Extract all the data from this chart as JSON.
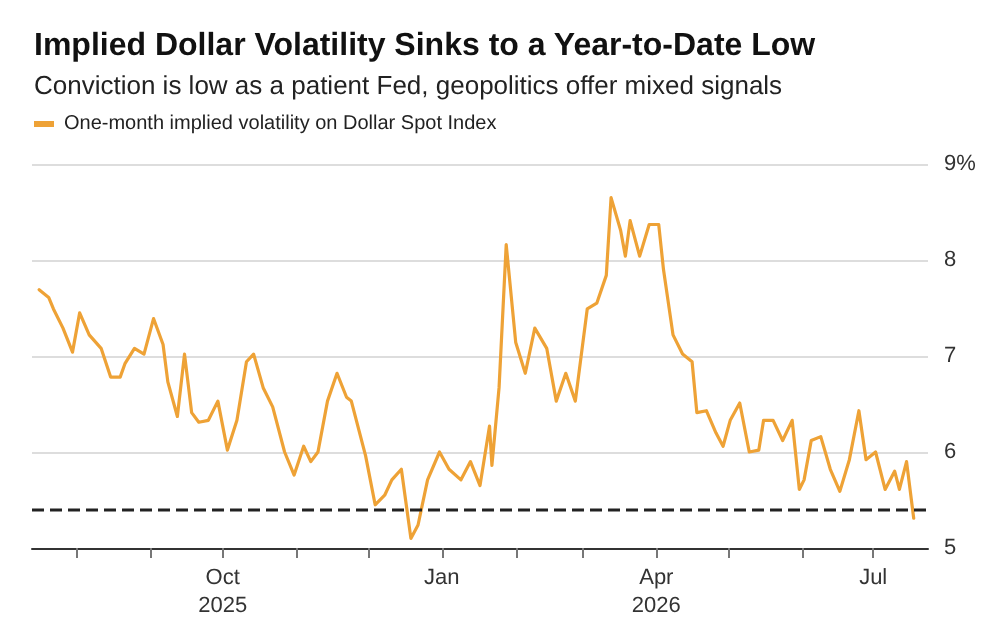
{
  "chart_data": {
    "type": "line",
    "title": "Implied Dollar Volatility Sinks to a Year-to-Date Low",
    "subtitle": "Conviction is low as a patient Fed, geopolitics offer mixed signals",
    "x": [
      "2025-07-16",
      "2025-07-20",
      "2025-07-22",
      "2025-07-26",
      "2025-07-30",
      "2025-08-02",
      "2025-08-06",
      "2025-08-11",
      "2025-08-15",
      "2025-08-19",
      "2025-08-21",
      "2025-08-25",
      "2025-08-29",
      "2025-09-02",
      "2025-09-06",
      "2025-09-08",
      "2025-09-12",
      "2025-09-15",
      "2025-09-18",
      "2025-09-21",
      "2025-09-25",
      "2025-09-29",
      "2025-10-03",
      "2025-10-07",
      "2025-10-11",
      "2025-10-14",
      "2025-10-18",
      "2025-10-22",
      "2025-10-27",
      "2025-10-31",
      "2025-11-04",
      "2025-11-07",
      "2025-11-10",
      "2025-11-14",
      "2025-11-18",
      "2025-11-22",
      "2025-11-24",
      "2025-11-30",
      "2025-12-04",
      "2025-12-08",
      "2025-12-11",
      "2025-12-15",
      "2025-12-19",
      "2025-12-22",
      "2025-12-26",
      "2025-12-31",
      "2026-01-04",
      "2026-01-09",
      "2026-01-13",
      "2026-01-17",
      "2026-01-21",
      "2026-01-22",
      "2026-01-25",
      "2026-01-28",
      "2026-02-01",
      "2026-02-05",
      "2026-02-09",
      "2026-02-14",
      "2026-02-18",
      "2026-02-22",
      "2026-02-26",
      "2026-03-03",
      "2026-03-07",
      "2026-03-11",
      "2026-03-13",
      "2026-03-17",
      "2026-03-19",
      "2026-03-21",
      "2026-03-25",
      "2026-03-29",
      "2026-04-02",
      "2026-04-04",
      "2026-04-08",
      "2026-04-12",
      "2026-04-16",
      "2026-04-18",
      "2026-04-22",
      "2026-04-26",
      "2026-04-29",
      "2026-05-02",
      "2026-05-06",
      "2026-05-10",
      "2026-05-14",
      "2026-05-16",
      "2026-05-20",
      "2026-05-24",
      "2026-05-28",
      "2026-05-31",
      "2026-06-02",
      "2026-06-05",
      "2026-06-09",
      "2026-06-13",
      "2026-06-17",
      "2026-06-21",
      "2026-06-25",
      "2026-06-28",
      "2026-07-02",
      "2026-07-06",
      "2026-07-10",
      "2026-07-12",
      "2026-07-15",
      "2026-07-18"
    ],
    "series": [
      {
        "name": "One-month implied volatility on Dollar Spot Index",
        "color": "#eea236",
        "values": [
          7.69,
          7.61,
          7.49,
          7.29,
          7.04,
          7.45,
          7.22,
          7.08,
          6.78,
          6.78,
          6.92,
          7.08,
          7.02,
          7.39,
          7.12,
          6.73,
          6.37,
          7.02,
          6.41,
          6.31,
          6.33,
          6.53,
          6.02,
          6.33,
          6.94,
          7.02,
          6.67,
          6.47,
          6.0,
          5.76,
          6.06,
          5.9,
          6.0,
          6.53,
          6.82,
          6.57,
          6.53,
          5.96,
          5.45,
          5.55,
          5.71,
          5.82,
          5.1,
          5.24,
          5.71,
          6.0,
          5.82,
          5.71,
          5.9,
          5.65,
          6.27,
          5.86,
          6.67,
          8.16,
          7.14,
          6.82,
          7.29,
          7.08,
          6.53,
          6.82,
          6.53,
          7.49,
          7.55,
          7.84,
          8.65,
          8.31,
          8.04,
          8.41,
          8.04,
          8.37,
          8.37,
          7.9,
          7.22,
          7.02,
          6.94,
          6.41,
          6.43,
          6.2,
          6.06,
          6.33,
          6.51,
          6.0,
          6.02,
          6.33,
          6.33,
          6.12,
          6.33,
          5.61,
          5.71,
          6.12,
          6.16,
          5.82,
          5.59,
          5.92,
          6.43,
          5.92,
          6.0,
          5.61,
          5.8,
          5.61,
          5.9,
          5.31
        ]
      }
    ],
    "xlim": [
      "2025-07-13",
      "2026-07-24"
    ],
    "xticks": [
      {
        "value": "2025-08-01",
        "label": null
      },
      {
        "value": "2025-09-01",
        "label": null
      },
      {
        "value": "2025-10-01",
        "label": "Oct\n2025"
      },
      {
        "value": "2025-11-01",
        "label": null
      },
      {
        "value": "2025-12-01",
        "label": null
      },
      {
        "value": "2026-01-01",
        "label": "Jan"
      },
      {
        "value": "2026-02-01",
        "label": null
      },
      {
        "value": "2026-03-01",
        "label": null
      },
      {
        "value": "2026-04-01",
        "label": "Apr\n2026"
      },
      {
        "value": "2026-05-01",
        "label": null
      },
      {
        "value": "2026-06-01",
        "label": null
      },
      {
        "value": "2026-07-01",
        "label": "Jul"
      }
    ],
    "ylim": [
      5,
      9
    ],
    "yticks": [
      5,
      6,
      7,
      8,
      {
        "value": 9,
        "label": "9%"
      }
    ],
    "ref_lines": [
      {
        "axis": "y",
        "value": 5.4,
        "label": null,
        "color": "#222222",
        "line_style": "dashed"
      }
    ],
    "grid": "y",
    "legend": "top left",
    "marker": "none",
    "line_style": "solid"
  }
}
